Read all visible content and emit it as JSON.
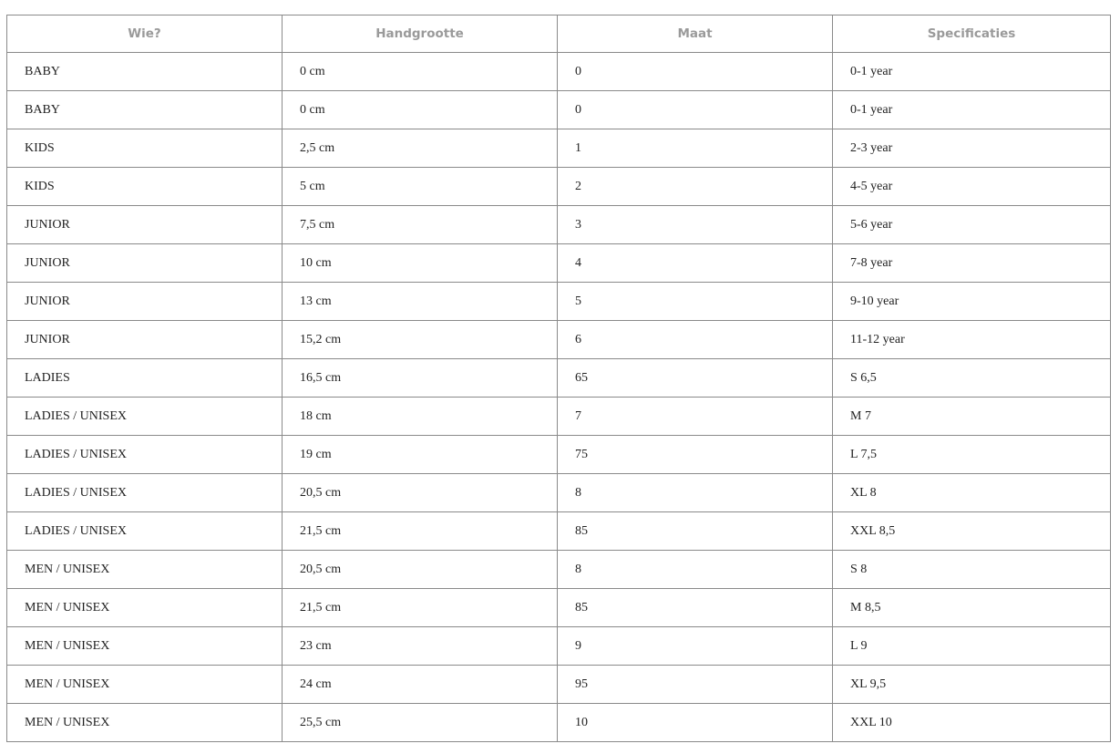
{
  "table": {
    "headers": [
      "Wie?",
      "Handgrootte",
      "Maat",
      "Specificaties"
    ],
    "rows": [
      [
        "BABY",
        "0 cm",
        "0",
        "0-1 year"
      ],
      [
        "BABY",
        "0 cm",
        "0",
        "0-1 year"
      ],
      [
        "KIDS",
        "2,5 cm",
        "1",
        "2-3 year"
      ],
      [
        "KIDS",
        "5 cm",
        "2",
        "4-5 year"
      ],
      [
        "JUNIOR",
        "7,5 cm",
        "3",
        "5-6 year"
      ],
      [
        "JUNIOR",
        "10 cm",
        "4",
        "7-8 year"
      ],
      [
        "JUNIOR",
        "13 cm",
        "5",
        "9-10 year"
      ],
      [
        "JUNIOR",
        "15,2 cm",
        "6",
        "11-12 year"
      ],
      [
        "LADIES",
        "16,5 cm",
        "65",
        "S 6,5"
      ],
      [
        "LADIES / UNISEX",
        "18 cm",
        "7",
        "M 7"
      ],
      [
        "LADIES / UNISEX",
        "19 cm",
        "75",
        "L 7,5"
      ],
      [
        "LADIES / UNISEX",
        "20,5 cm",
        "8",
        "XL 8"
      ],
      [
        "LADIES / UNISEX",
        "21,5 cm",
        "85",
        "XXL 8,5"
      ],
      [
        "MEN / UNISEX",
        "20,5 cm",
        "8",
        "S 8"
      ],
      [
        "MEN / UNISEX",
        "21,5 cm",
        "85",
        "M 8,5"
      ],
      [
        "MEN / UNISEX",
        "23 cm",
        "9",
        "L 9"
      ],
      [
        "MEN / UNISEX",
        "24 cm",
        "95",
        "XL 9,5"
      ],
      [
        "MEN / UNISEX",
        "25,5 cm",
        "10",
        "XXL 10"
      ]
    ]
  }
}
